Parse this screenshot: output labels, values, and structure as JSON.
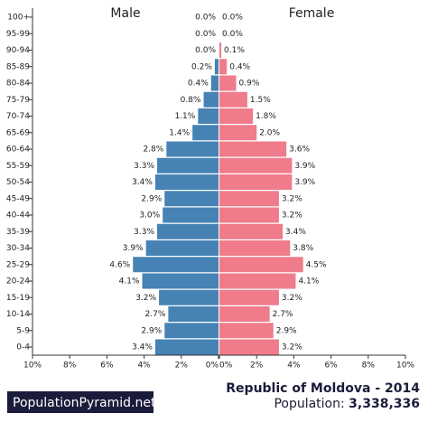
{
  "chart_data": {
    "type": "pyramid",
    "title": "Republic of Moldova - 2014",
    "population_label": "Population:",
    "population": "3,338,336",
    "brand": "PopulationPyramid.net",
    "categories": [
      "100+",
      "95-99",
      "90-94",
      "85-89",
      "80-84",
      "75-79",
      "70-74",
      "65-69",
      "60-64",
      "55-59",
      "50-54",
      "45-49",
      "40-44",
      "35-39",
      "30-34",
      "25-29",
      "20-24",
      "15-19",
      "10-14",
      "5-9",
      "0-4"
    ],
    "series": [
      {
        "name": "Male",
        "color": "#4682b4",
        "values": [
          0.0,
          0.0,
          0.0,
          0.2,
          0.4,
          0.8,
          1.1,
          1.4,
          2.8,
          3.3,
          3.4,
          2.9,
          3.0,
          3.3,
          3.9,
          4.6,
          4.1,
          3.2,
          2.7,
          2.9,
          3.4
        ],
        "value_labels": [
          "0.0%",
          "0.0%",
          "0.0%",
          "0.2%",
          "0.4%",
          "0.8%",
          "1.1%",
          "1.4%",
          "2.8%",
          "3.3%",
          "3.4%",
          "2.9%",
          "3.0%",
          "3.3%",
          "3.9%",
          "4.6%",
          "4.1%",
          "3.2%",
          "2.7%",
          "2.9%",
          "3.4%"
        ]
      },
      {
        "name": "Female",
        "color": "#ef7b8b",
        "values": [
          0.0,
          0.0,
          0.1,
          0.4,
          0.9,
          1.5,
          1.8,
          2.0,
          3.6,
          3.9,
          3.9,
          3.2,
          3.2,
          3.4,
          3.8,
          4.5,
          4.1,
          3.2,
          2.7,
          2.9,
          3.2
        ],
        "value_labels": [
          "0.0%",
          "0.0%",
          "0.1%",
          "0.4%",
          "0.9%",
          "1.5%",
          "1.8%",
          "2.0%",
          "3.6%",
          "3.9%",
          "3.9%",
          "3.2%",
          "3.2%",
          "3.4%",
          "3.8%",
          "4.5%",
          "4.1%",
          "3.2%",
          "2.7%",
          "2.9%",
          "3.2%"
        ]
      }
    ],
    "xlim": [
      0,
      10
    ],
    "xticks": [
      {
        "value": 0,
        "label": "0%"
      },
      {
        "value": 2,
        "label": "2%"
      },
      {
        "value": 4,
        "label": "4%"
      },
      {
        "value": 6,
        "label": "6%"
      },
      {
        "value": 8,
        "label": "8%"
      },
      {
        "value": 10,
        "label": "10%"
      }
    ]
  }
}
